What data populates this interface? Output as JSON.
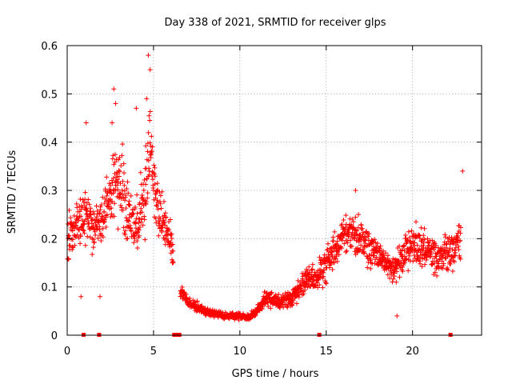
{
  "chart_data": {
    "type": "scatter",
    "title": "Day 338 of 2021, SRMTID for receiver glps",
    "xlabel": "GPS time / hours",
    "ylabel": "SRMTID / TECUs",
    "xlim": [
      0,
      24
    ],
    "ylim": [
      0,
      0.6
    ],
    "xticks": [
      0,
      5,
      10,
      15,
      20
    ],
    "xtick_labels": [
      "0",
      "5",
      "10",
      "15",
      "20"
    ],
    "yticks": [
      0,
      0.1,
      0.2,
      0.3,
      0.4,
      0.5,
      0.6
    ],
    "ytick_labels": [
      "0",
      "0.1",
      "0.2",
      "0.3",
      "0.4",
      "0.5",
      "0.6"
    ],
    "grid": true,
    "marker": "+",
    "series_color": "#ff0000",
    "series": [
      {
        "name": "SRMTID",
        "profile_x": [
          0,
          0.5,
          1.0,
          1.5,
          2.0,
          2.5,
          3.0,
          3.5,
          4.0,
          4.5,
          4.8,
          5.0,
          5.3,
          5.7,
          6.0,
          6.3,
          7.0,
          8.0,
          9.0,
          10.0,
          10.5,
          11.0,
          11.5,
          12.0,
          12.5,
          13.0,
          13.5,
          14.0,
          14.5,
          15.0,
          15.5,
          16.0,
          16.5,
          17.0,
          17.5,
          18.0,
          18.5,
          19.0,
          19.5,
          20.0,
          20.5,
          21.0,
          21.5,
          22.0,
          22.5,
          22.8
        ],
        "profile_y": [
          0.2,
          0.22,
          0.25,
          0.22,
          0.24,
          0.3,
          0.32,
          0.25,
          0.22,
          0.28,
          0.4,
          0.32,
          0.25,
          0.22,
          0.2,
          0.1,
          0.07,
          0.05,
          0.04,
          0.04,
          0.035,
          0.05,
          0.08,
          0.07,
          0.07,
          0.08,
          0.1,
          0.12,
          0.12,
          0.15,
          0.18,
          0.2,
          0.21,
          0.2,
          0.18,
          0.17,
          0.15,
          0.14,
          0.17,
          0.19,
          0.18,
          0.17,
          0.16,
          0.17,
          0.18,
          0.2
        ],
        "spread_y": [
          0.08,
          0.08,
          0.09,
          0.08,
          0.09,
          0.12,
          0.13,
          0.11,
          0.1,
          0.12,
          0.15,
          0.12,
          0.1,
          0.08,
          0.06,
          0.04,
          0.02,
          0.015,
          0.012,
          0.012,
          0.01,
          0.02,
          0.03,
          0.025,
          0.025,
          0.03,
          0.04,
          0.05,
          0.05,
          0.06,
          0.06,
          0.07,
          0.07,
          0.06,
          0.06,
          0.06,
          0.05,
          0.06,
          0.07,
          0.07,
          0.07,
          0.07,
          0.06,
          0.07,
          0.07,
          0.08
        ],
        "peaks": [
          {
            "x": 4.7,
            "y": 0.58
          },
          {
            "x": 4.8,
            "y": 0.55
          },
          {
            "x": 2.7,
            "y": 0.51
          },
          {
            "x": 2.8,
            "y": 0.48
          },
          {
            "x": 4.0,
            "y": 0.47
          },
          {
            "x": 4.6,
            "y": 0.49
          },
          {
            "x": 1.1,
            "y": 0.44
          },
          {
            "x": 2.6,
            "y": 0.44
          },
          {
            "x": 22.9,
            "y": 0.34
          },
          {
            "x": 16.7,
            "y": 0.3
          },
          {
            "x": 0.8,
            "y": 0.08
          },
          {
            "x": 1.9,
            "y": 0.08
          },
          {
            "x": 19.1,
            "y": 0.04
          }
        ],
        "gap_markers_x": [
          0.95,
          1.85,
          6.2,
          6.35,
          6.5,
          14.6,
          22.2
        ]
      }
    ]
  }
}
